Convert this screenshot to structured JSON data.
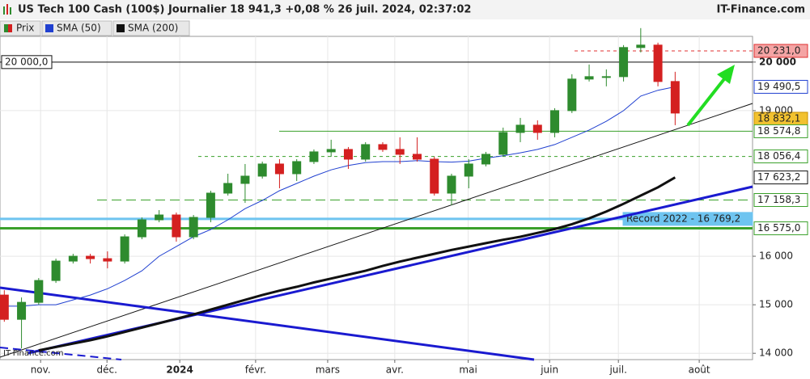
{
  "chart_data": {
    "type": "candlestick",
    "title": "US Tech 100 Cash (100$) Journalier 18 941,3 +0,08 % 26 juil. 2024, 02:37:02",
    "brand": "IT-Finance.com",
    "watermark": "IT-Finance.com",
    "legend": [
      "Prix",
      "SMA (50)",
      "SMA (200)"
    ],
    "categories": [
      null,
      null,
      null,
      null,
      null,
      null,
      null,
      null,
      null,
      null,
      null,
      null,
      null,
      null,
      null,
      null,
      null,
      null,
      null,
      null,
      null,
      null,
      null,
      null,
      null,
      null,
      null,
      null,
      null,
      null,
      null,
      null,
      null,
      null,
      null,
      null,
      null,
      null,
      null,
      null
    ],
    "open": [
      15200,
      14700,
      15050,
      15500,
      15900,
      16000,
      15950,
      15900,
      16400,
      16750,
      16850,
      16400,
      16800,
      17300,
      17500,
      17650,
      17900,
      17700,
      17950,
      18150,
      18200,
      18000,
      18300,
      18200,
      18100,
      18000,
      17300,
      17650,
      17900,
      18100,
      18550,
      18700,
      18550,
      19000,
      19650,
      19700,
      19700,
      20300,
      20350,
      19600
    ],
    "high": [
      15300,
      15150,
      15550,
      15950,
      16050,
      16050,
      16100,
      16450,
      16800,
      16950,
      16900,
      16850,
      17350,
      17700,
      17900,
      17950,
      18000,
      18000,
      18200,
      18400,
      18250,
      18350,
      18350,
      18450,
      18450,
      18050,
      17700,
      18000,
      18150,
      18650,
      18850,
      18800,
      19050,
      19750,
      19950,
      19850,
      20350,
      20700,
      20400,
      19800
    ],
    "low": [
      14650,
      14100,
      15000,
      15450,
      15850,
      15850,
      15750,
      15850,
      16350,
      16700,
      16300,
      16350,
      16700,
      17250,
      17100,
      17600,
      17400,
      17550,
      17900,
      18050,
      17800,
      17950,
      18150,
      17900,
      17950,
      17250,
      17050,
      17400,
      17850,
      18050,
      18350,
      18400,
      18450,
      18950,
      19600,
      19500,
      19600,
      20200,
      19500,
      18700
    ],
    "close": [
      14700,
      15050,
      15500,
      15900,
      16000,
      15950,
      15900,
      16400,
      16750,
      16850,
      16400,
      16800,
      17300,
      17500,
      17650,
      17900,
      17700,
      17950,
      18150,
      18200,
      18000,
      18300,
      18200,
      18100,
      18000,
      17300,
      17650,
      17900,
      18100,
      18550,
      18700,
      18550,
      19000,
      19650,
      19700,
      19700,
      20300,
      20350,
      19600,
      18950
    ],
    "up_color": "#2e8b2e",
    "down_color": "#d42020",
    "series": [
      {
        "name": "SMA (50)",
        "color": "#2040d0",
        "width": 1,
        "values": [
          14970,
          14970,
          15000,
          15000,
          15100,
          15200,
          15330,
          15500,
          15700,
          16000,
          16200,
          16400,
          16550,
          16750,
          16980,
          17150,
          17350,
          17500,
          17650,
          17780,
          17870,
          17930,
          17950,
          17950,
          17970,
          17950,
          17940,
          17960,
          18020,
          18070,
          18130,
          18200,
          18300,
          18450,
          18600,
          18780,
          19000,
          19300,
          19420,
          19490.5
        ]
      },
      {
        "name": "SMA (200)",
        "color": "#111111",
        "width": 3,
        "values": [
          null,
          null,
          14060,
          14130,
          14200,
          14270,
          14350,
          14440,
          14530,
          14620,
          14710,
          14800,
          14900,
          15000,
          15100,
          15200,
          15290,
          15370,
          15460,
          15540,
          15620,
          15700,
          15800,
          15890,
          15970,
          16050,
          16130,
          16200,
          16270,
          16340,
          16400,
          16480,
          16560,
          16660,
          16780,
          16920,
          17080,
          17250,
          17420,
          17623.2
        ]
      }
    ],
    "levels": [
      {
        "value": 20231.0,
        "label": "20 231,0",
        "color": "#e03030",
        "style": "dotted",
        "label_bg": "#f4a4a4"
      },
      {
        "value": 20000.0,
        "label": "20 000,0",
        "color": "#111111",
        "style": "solid",
        "label_bg": "#ffffff"
      },
      {
        "value": 19490.5,
        "label": "19 490,5",
        "color": "#2040d0",
        "style": "none",
        "label_bg": "#ffffff"
      },
      {
        "value": 18832.1,
        "label": "18 832,1",
        "color": "#c89000",
        "style": "none",
        "label_bg": "#f2c230"
      },
      {
        "value": 18574.8,
        "label": "18 574,8",
        "color": "#3aa02a",
        "style": "solid",
        "label_bg": "#ffffff"
      },
      {
        "value": 18056.4,
        "label": "18 056,4",
        "color": "#3aa02a",
        "style": "dotted",
        "label_bg": "#ffffff"
      },
      {
        "value": 17623.2,
        "label": "17 623,2",
        "color": "#111111",
        "style": "none",
        "label_bg": "#ffffff"
      },
      {
        "value": 17158.3,
        "label": "17 158,3",
        "color": "#3aa02a",
        "style": "dashed",
        "label_bg": "#ffffff"
      },
      {
        "value": 16769.2,
        "label": "Record 2022 - 16 769,2",
        "color": "#6ec4f0",
        "style": "thick",
        "label_bg": "#6ec4f0"
      },
      {
        "value": 16575.0,
        "label": "16 575,0",
        "color": "#3aa02a",
        "style": "thick",
        "label_bg": "#ffffff"
      }
    ],
    "ylim": [
      13870,
      20530
    ],
    "yticks": [
      {
        "value": 20000,
        "label": "20 000"
      },
      {
        "value": 19000,
        "label": "19 000"
      },
      {
        "value": 16000,
        "label": "16 000"
      },
      {
        "value": 15000,
        "label": "15 000"
      },
      {
        "value": 14000,
        "label": "14 000"
      }
    ],
    "xlim": [
      -0.25,
      43.5
    ],
    "xticks": [
      {
        "value": 2.11,
        "label": "nov."
      },
      {
        "value": 5.97,
        "label": "déc."
      },
      {
        "value": 10.2,
        "label": "2024"
      },
      {
        "value": 14.61,
        "label": "févr."
      },
      {
        "value": 18.8,
        "label": "mars"
      },
      {
        "value": 22.7,
        "label": "avr."
      },
      {
        "value": 26.97,
        "label": "mai"
      },
      {
        "value": 31.7,
        "label": "juin"
      },
      {
        "value": 35.7,
        "label": "juil."
      },
      {
        "value": 40.4,
        "label": "août"
      }
    ],
    "grid": true
  }
}
